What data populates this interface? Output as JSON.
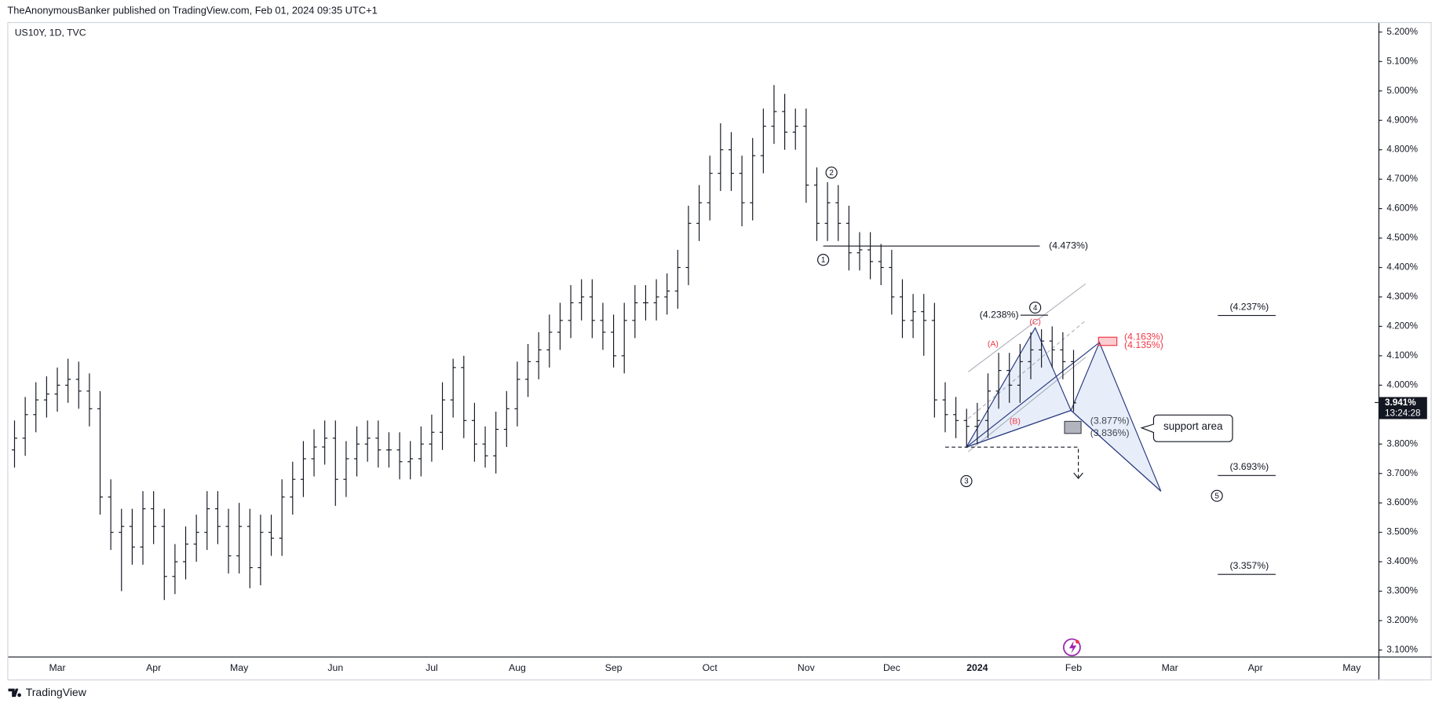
{
  "header": {
    "publisher": "TheAnonymousBanker published on TradingView.com, Feb 01, 2024 09:35 UTC+1"
  },
  "chart_data": {
    "type": "ohlc",
    "title": "US10Y, 1D, TVC",
    "color": "#131722",
    "categories": [
      null,
      null,
      null,
      null,
      "Mar",
      null,
      null,
      null,
      null,
      null,
      null,
      null,
      null,
      "Apr",
      null,
      null,
      null,
      null,
      null,
      null,
      null,
      "May",
      null,
      null,
      null,
      null,
      null,
      null,
      null,
      null,
      "Jun",
      null,
      null,
      null,
      null,
      null,
      null,
      null,
      null,
      "Jul",
      null,
      null,
      null,
      null,
      null,
      null,
      null,
      "Aug",
      null,
      null,
      null,
      null,
      null,
      null,
      null,
      null,
      "Sep",
      null,
      null,
      null,
      null,
      null,
      null,
      null,
      null,
      "Oct",
      null,
      null,
      null,
      null,
      null,
      null,
      null,
      null,
      "Nov",
      null,
      null,
      null,
      null,
      null,
      null,
      null,
      "Dec",
      null,
      null,
      null,
      null,
      null,
      null,
      null,
      "2024",
      null,
      null,
      null,
      null,
      null,
      null,
      null,
      null,
      "Feb",
      null,
      null,
      null,
      null,
      null,
      null,
      null,
      null,
      "Mar",
      null,
      null,
      null,
      null,
      null,
      null,
      null,
      "Apr",
      null,
      null,
      null,
      null,
      null,
      null,
      null,
      null,
      "May",
      null,
      null
    ],
    "open": [
      3.78,
      3.82,
      3.9,
      3.95,
      3.97,
      4.0,
      4.02,
      3.98,
      3.92,
      3.62,
      3.5,
      3.52,
      3.45,
      3.58,
      3.52,
      3.35,
      3.4,
      3.46,
      3.5,
      3.58,
      3.52,
      3.42,
      3.52,
      3.38,
      3.5,
      3.48,
      3.62,
      3.68,
      3.75,
      3.79,
      3.82,
      3.68,
      3.75,
      3.8,
      3.82,
      3.78,
      3.78,
      3.74,
      3.75,
      3.8,
      3.84,
      3.95,
      4.06,
      3.88,
      3.8,
      3.76,
      3.85,
      3.92,
      4.02,
      4.08,
      4.12,
      4.18,
      4.22,
      4.28,
      4.3,
      4.22,
      4.18,
      4.1,
      4.22,
      4.28,
      4.28,
      4.3,
      4.32,
      4.4,
      4.55,
      4.62,
      4.72,
      4.8,
      4.72,
      4.62,
      4.78,
      4.88,
      4.93,
      4.86,
      4.88,
      4.68,
      4.55,
      4.62,
      4.55,
      4.45,
      4.46,
      4.42,
      4.4,
      4.3,
      4.22,
      4.25,
      4.22,
      3.95,
      3.9,
      3.88,
      3.86,
      3.88,
      3.98,
      4.05,
      4.0,
      4.08,
      4.12,
      4.15,
      4.12,
      4.08,
      null,
      null,
      null,
      null,
      null,
      null,
      null,
      null,
      null,
      null,
      null,
      null,
      null,
      null,
      null,
      null,
      null,
      null,
      null,
      null,
      null,
      null,
      null,
      null,
      null,
      null,
      null,
      null
    ],
    "high": [
      3.88,
      3.96,
      4.01,
      4.03,
      4.06,
      4.09,
      4.08,
      4.04,
      3.98,
      3.68,
      3.58,
      3.58,
      3.64,
      3.64,
      3.58,
      3.46,
      3.52,
      3.56,
      3.64,
      3.64,
      3.58,
      3.6,
      3.58,
      3.56,
      3.56,
      3.68,
      3.74,
      3.81,
      3.85,
      3.88,
      3.88,
      3.81,
      3.86,
      3.88,
      3.88,
      3.84,
      3.84,
      3.81,
      3.86,
      3.9,
      4.01,
      4.09,
      4.1,
      3.94,
      3.86,
      3.91,
      3.98,
      4.08,
      4.14,
      4.18,
      4.24,
      4.28,
      4.34,
      4.36,
      4.36,
      4.28,
      4.24,
      4.28,
      4.34,
      4.34,
      4.36,
      4.38,
      4.46,
      4.61,
      4.68,
      4.78,
      4.89,
      4.86,
      4.78,
      4.84,
      4.94,
      5.02,
      4.99,
      4.94,
      4.94,
      4.74,
      4.69,
      4.68,
      4.61,
      4.52,
      4.52,
      4.48,
      4.46,
      4.36,
      4.31,
      4.31,
      4.28,
      4.01,
      3.96,
      3.92,
      3.94,
      4.04,
      4.11,
      4.11,
      4.14,
      4.18,
      4.19,
      4.2,
      4.18,
      4.12,
      null,
      null,
      null,
      null,
      null,
      null,
      null,
      null,
      null,
      null,
      null,
      null,
      null,
      null,
      null,
      null,
      null,
      null,
      null,
      null,
      null,
      null,
      null,
      null,
      null,
      null,
      null,
      null
    ],
    "low": [
      3.72,
      3.76,
      3.84,
      3.89,
      3.91,
      3.94,
      3.92,
      3.86,
      3.56,
      3.44,
      3.3,
      3.39,
      3.39,
      3.46,
      3.27,
      3.29,
      3.34,
      3.4,
      3.44,
      3.46,
      3.36,
      3.36,
      3.31,
      3.32,
      3.42,
      3.42,
      3.56,
      3.62,
      3.69,
      3.73,
      3.59,
      3.62,
      3.69,
      3.74,
      3.72,
      3.72,
      3.68,
      3.68,
      3.69,
      3.74,
      3.78,
      3.89,
      3.82,
      3.74,
      3.72,
      3.7,
      3.79,
      3.86,
      3.96,
      4.02,
      4.06,
      4.12,
      4.16,
      4.22,
      4.16,
      4.12,
      4.06,
      4.04,
      4.16,
      4.22,
      4.22,
      4.24,
      4.26,
      4.34,
      4.49,
      4.56,
      4.66,
      4.66,
      4.54,
      4.56,
      4.72,
      4.82,
      4.8,
      4.8,
      4.62,
      4.49,
      4.49,
      4.49,
      4.39,
      4.39,
      4.36,
      4.34,
      4.24,
      4.16,
      4.16,
      4.1,
      3.89,
      3.84,
      3.82,
      3.79,
      3.8,
      3.82,
      3.92,
      3.94,
      3.94,
      4.02,
      4.06,
      4.06,
      4.02,
      3.91,
      null,
      null,
      null,
      null,
      null,
      null,
      null,
      null,
      null,
      null,
      null,
      null,
      null,
      null,
      null,
      null,
      null,
      null,
      null,
      null,
      null,
      null,
      null,
      null,
      null,
      null,
      null,
      null
    ],
    "close": [
      3.82,
      3.9,
      3.95,
      3.97,
      4.0,
      4.02,
      3.98,
      3.92,
      3.62,
      3.5,
      3.52,
      3.45,
      3.58,
      3.52,
      3.35,
      3.4,
      3.46,
      3.5,
      3.58,
      3.52,
      3.42,
      3.52,
      3.38,
      3.5,
      3.48,
      3.62,
      3.68,
      3.75,
      3.79,
      3.82,
      3.68,
      3.75,
      3.8,
      3.82,
      3.78,
      3.78,
      3.74,
      3.75,
      3.8,
      3.84,
      3.95,
      4.06,
      3.88,
      3.8,
      3.76,
      3.85,
      3.92,
      4.02,
      4.08,
      4.12,
      4.18,
      4.22,
      4.28,
      4.3,
      4.22,
      4.18,
      4.1,
      4.22,
      4.28,
      4.28,
      4.3,
      4.32,
      4.4,
      4.55,
      4.62,
      4.72,
      4.8,
      4.72,
      4.62,
      4.78,
      4.88,
      4.93,
      4.86,
      4.88,
      4.68,
      4.55,
      4.62,
      4.55,
      4.45,
      4.46,
      4.42,
      4.4,
      4.3,
      4.22,
      4.25,
      4.22,
      3.95,
      3.9,
      3.88,
      3.86,
      3.88,
      3.98,
      4.05,
      4.0,
      4.08,
      4.12,
      4.15,
      4.12,
      4.08,
      3.94,
      null,
      null,
      null,
      null,
      null,
      null,
      null,
      null,
      null,
      null,
      null,
      null,
      null,
      null,
      null,
      null,
      null,
      null,
      null,
      null,
      null,
      null,
      null,
      null,
      null,
      null,
      null,
      null
    ],
    "ylim": [
      3.078,
      5.231
    ],
    "yticks": [
      {
        "value": 3.1,
        "label": "3.100%"
      },
      {
        "value": 3.2,
        "label": "3.200%"
      },
      {
        "value": 3.3,
        "label": "3.300%"
      },
      {
        "value": 3.4,
        "label": "3.400%"
      },
      {
        "value": 3.5,
        "label": "3.500%"
      },
      {
        "value": 3.6,
        "label": "3.600%"
      },
      {
        "value": 3.7,
        "label": "3.700%"
      },
      {
        "value": 3.8,
        "label": "3.800%"
      },
      {
        "value": 3.9,
        "label": "3.900%"
      },
      {
        "value": 4.0,
        "label": "4.000%"
      },
      {
        "value": 4.1,
        "label": "4.100%"
      },
      {
        "value": 4.2,
        "label": "4.200%"
      },
      {
        "value": 4.3,
        "label": "4.300%"
      },
      {
        "value": 4.4,
        "label": "4.400%"
      },
      {
        "value": 4.5,
        "label": "4.500%"
      },
      {
        "value": 4.6,
        "label": "4.600%"
      },
      {
        "value": 4.7,
        "label": "4.700%"
      },
      {
        "value": 4.8,
        "label": "4.800%"
      },
      {
        "value": 4.9,
        "label": "4.900%"
      },
      {
        "value": 5.0,
        "label": "5.000%"
      },
      {
        "value": 5.1,
        "label": "5.100%"
      },
      {
        "value": 5.2,
        "label": "5.200%"
      }
    ],
    "last_price": {
      "value": 3.941,
      "label": "3.941%"
    },
    "countdown": "13:24:28",
    "levels": [
      {
        "label": "(4.473%)",
        "value": 4.473
      },
      {
        "label": "(4.238%)",
        "value": 4.238
      },
      {
        "label": "(4.237%)",
        "value": 4.237
      },
      {
        "label": "(4.163%)",
        "value": 4.163
      },
      {
        "label": "(4.135%)",
        "value": 4.135
      },
      {
        "label": "(3.877%)",
        "value": 3.877
      },
      {
        "label": "(3.836%)",
        "value": 3.836
      },
      {
        "label": "(3.693%)",
        "value": 3.693
      },
      {
        "label": "(3.357%)",
        "value": 3.357
      }
    ],
    "wave_labels": [
      "1",
      "2",
      "3",
      "4",
      "5"
    ],
    "pattern_labels": [
      "(A)",
      "(B)",
      "(C)"
    ],
    "callout": "support area"
  },
  "footer": {
    "brand": "TradingView"
  }
}
